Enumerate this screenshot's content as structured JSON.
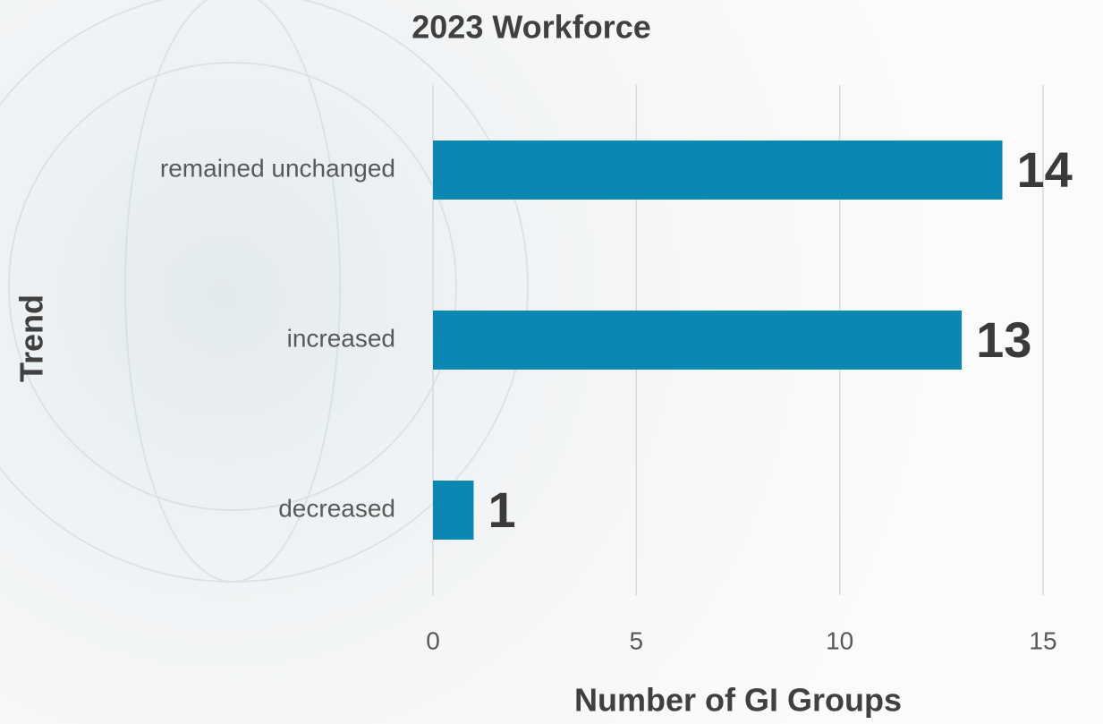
{
  "chart_data": {
    "type": "bar",
    "orientation": "horizontal",
    "title": "2023 Workforce",
    "x_label": "Number of GI Groups",
    "y_label": "Trend",
    "categories": [
      "remained unchanged",
      "increased",
      "decreased"
    ],
    "values": [
      14,
      13,
      1
    ],
    "color": "#0a88b2",
    "xlim": [
      0,
      15
    ],
    "xticks": [
      0,
      5,
      10,
      15
    ],
    "grid": true
  }
}
